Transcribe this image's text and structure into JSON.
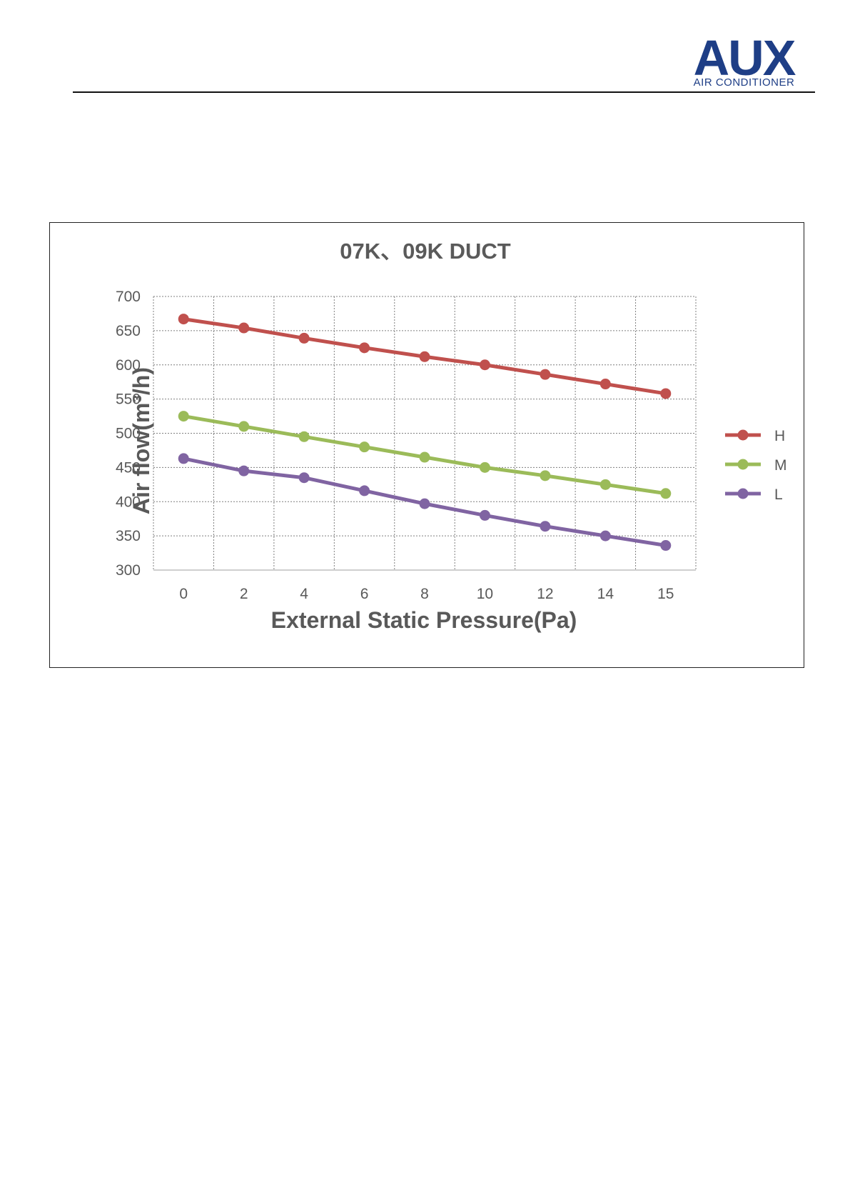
{
  "header": {
    "logo_main": "AUX",
    "logo_sub": "AIR CONDITIONER"
  },
  "chart_data": {
    "type": "line",
    "title": "07K、09K  DUCT",
    "xlabel": "External Static Pressure(Pa)",
    "ylabel": "Air  flow(m³/h)",
    "categories": [
      "0",
      "2",
      "4",
      "6",
      "8",
      "10",
      "12",
      "14",
      "15"
    ],
    "ylim": [
      300,
      700
    ],
    "yticks": [
      "700",
      "650",
      "600",
      "550",
      "500",
      "450",
      "400",
      "350",
      "300"
    ],
    "grid": true,
    "legend_position": "right",
    "series": [
      {
        "name": "H",
        "color": "#c0504d",
        "values": [
          667,
          654,
          639,
          625,
          612,
          600,
          586,
          572,
          558
        ]
      },
      {
        "name": "M",
        "color": "#9bbb59",
        "values": [
          525,
          510,
          495,
          480,
          465,
          450,
          438,
          425,
          412
        ]
      },
      {
        "name": "L",
        "color": "#8064a2",
        "values": [
          463,
          445,
          435,
          416,
          397,
          380,
          364,
          350,
          336
        ]
      }
    ]
  }
}
